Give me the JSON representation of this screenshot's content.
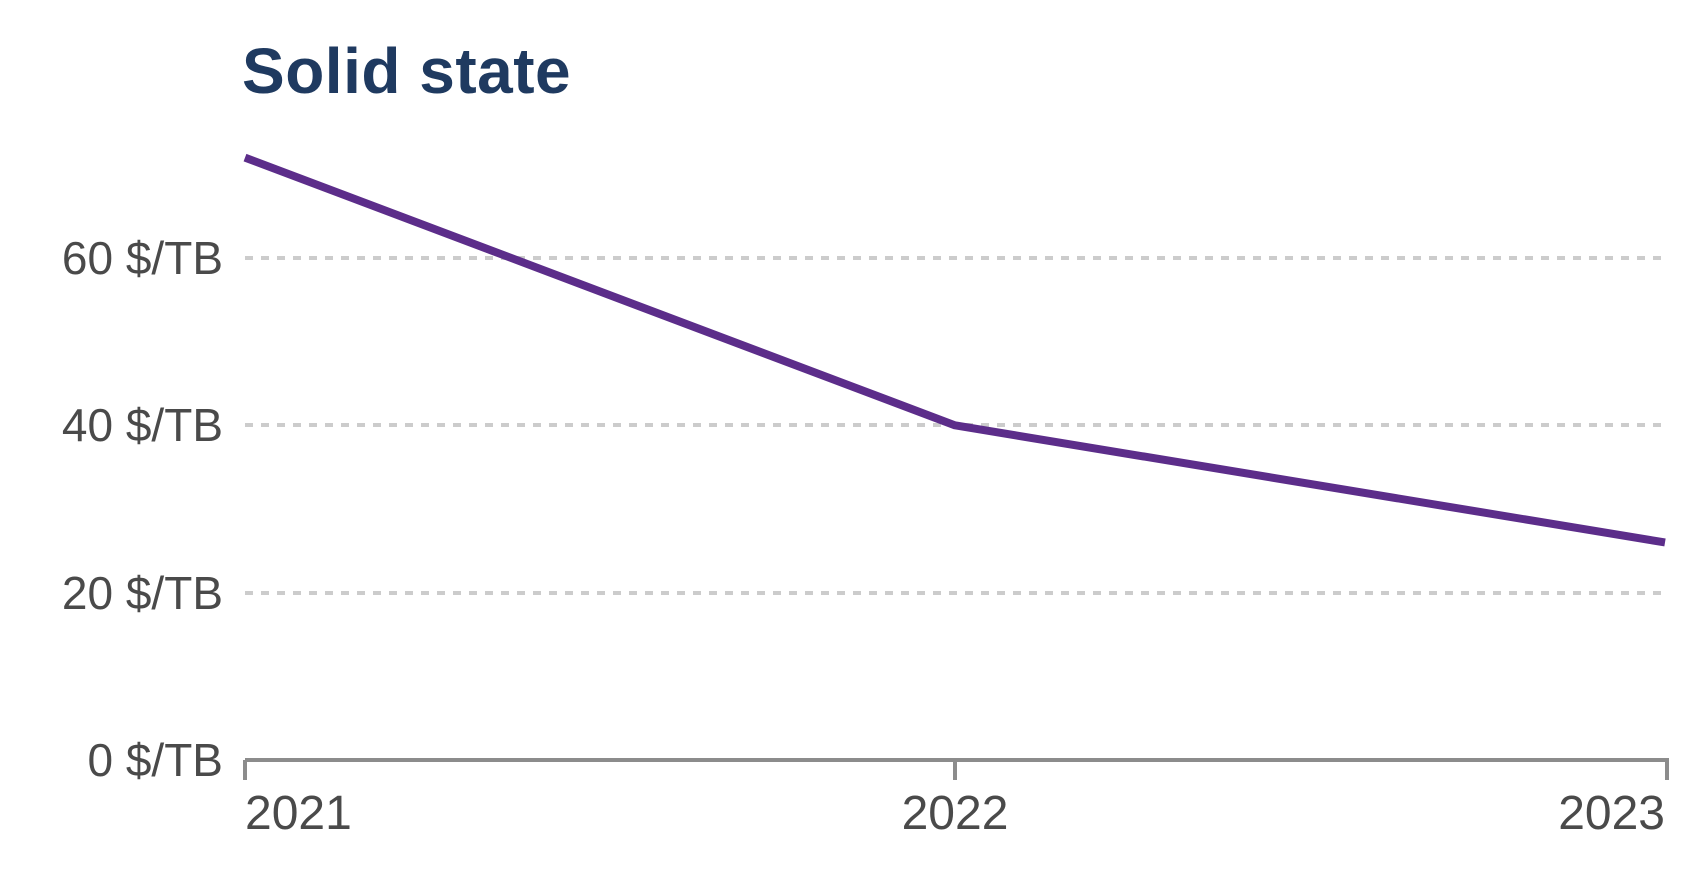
{
  "title": {
    "text": "Solid state",
    "color": "#1f3a60"
  },
  "colors": {
    "line": "#5c2d8a",
    "axis_text": "#4a4a4a",
    "axis_line": "#8c8c8c",
    "gridline": "#cccccc",
    "background": "#ffffff"
  },
  "chart_data": {
    "type": "line",
    "title": "Solid state",
    "x": [
      2021,
      2022,
      2023
    ],
    "x_tick_labels": [
      "2021",
      "2022",
      "2023"
    ],
    "series": [
      {
        "name": "Solid state",
        "values": [
          72,
          40,
          26
        ]
      }
    ],
    "ylabel_unit": "$/TB",
    "y_ticks": [
      0,
      20,
      40,
      60
    ],
    "y_tick_labels": [
      "0 $/TB",
      "20 $/TB",
      "40 $/TB",
      "60 $/TB"
    ],
    "ylim": [
      0,
      80
    ],
    "grid": "horizontal-dashed",
    "legend_position": "none"
  }
}
